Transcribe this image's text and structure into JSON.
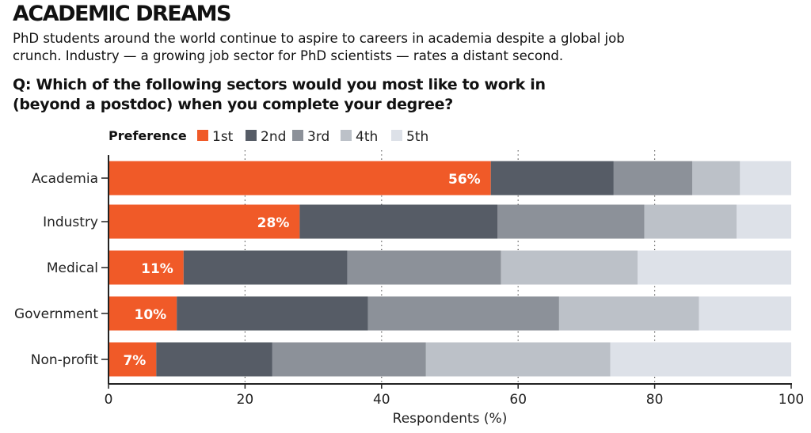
{
  "headline": "ACADEMIC DREAMS",
  "subtitle": "PhD students around the world continue to aspire to careers in academia despite a global job crunch. Industry — a growing job sector for PhD scientists — rates a distant second.",
  "question": "Q: Which of the following sectors would you most like to work in (beyond a postdoc) when you complete your degree?",
  "chart_data": {
    "type": "bar",
    "orientation": "horizontal",
    "stacked": true,
    "categories": [
      "Academia",
      "Industry",
      "Medical",
      "Government",
      "Non-profit"
    ],
    "series": [
      {
        "name": "1st",
        "color": "#f05a28",
        "values": [
          56,
          28,
          11,
          10,
          7
        ]
      },
      {
        "name": "2nd",
        "color": "#565c66",
        "values": [
          18,
          29,
          24,
          28,
          17
        ]
      },
      {
        "name": "3rd",
        "color": "#8c9199",
        "values": [
          11.5,
          21.5,
          22.5,
          28,
          22.5
        ]
      },
      {
        "name": "4th",
        "color": "#bcc1c8",
        "values": [
          7,
          13.5,
          20,
          20.5,
          27
        ]
      },
      {
        "name": "5th",
        "color": "#dde1e8",
        "values": [
          7.5,
          8,
          22.5,
          13.5,
          26.5
        ]
      }
    ],
    "data_labels": [
      "56%",
      "28%",
      "11%",
      "10%",
      "7%"
    ],
    "legend_title": "Preference",
    "legend_position": "top",
    "xlabel": "Respondents (%)",
    "xlim": [
      0,
      100
    ],
    "xticks": [
      0,
      20,
      40,
      60,
      80,
      100
    ],
    "grid": "dotted vertical"
  }
}
